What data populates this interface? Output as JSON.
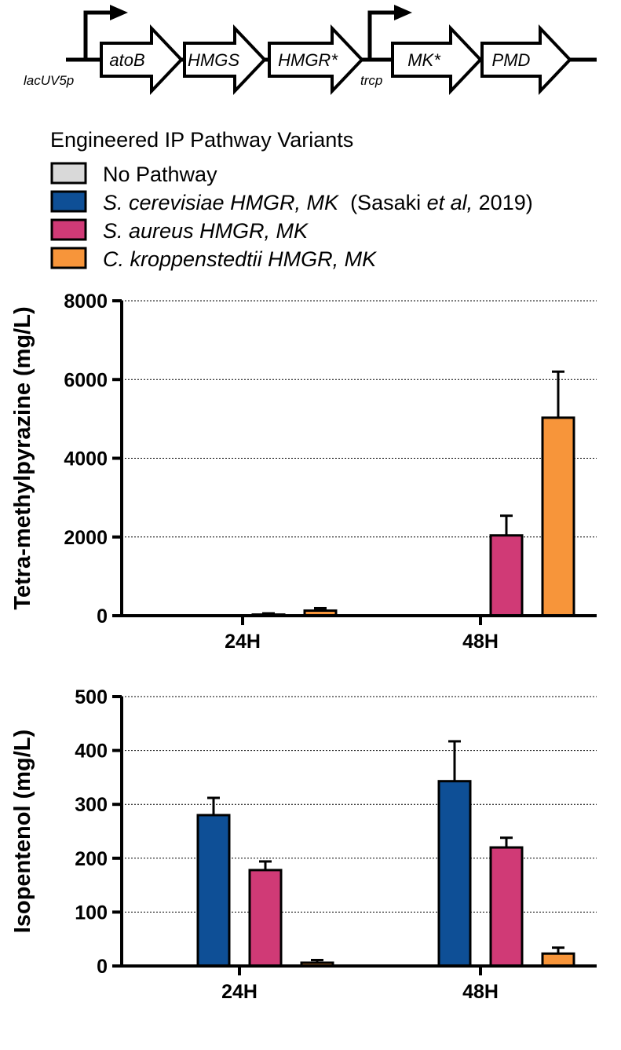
{
  "construct": {
    "promoters": [
      "lacUV5p",
      "trcp"
    ],
    "genes": [
      "atoB",
      "HMGS",
      "HMGR*",
      "MK*",
      "PMD"
    ]
  },
  "legend": {
    "title": "Engineered IP Pathway Variants",
    "items": [
      {
        "id": "none",
        "color": "#d9d9d9",
        "parts": [
          {
            "text": "No Pathway",
            "italic": false
          }
        ]
      },
      {
        "id": "scer",
        "color": "#0e4f96",
        "parts": [
          {
            "text": "S. cerevisiae HMGR, MK",
            "italic": true
          },
          {
            "text": "  (Sasaki ",
            "italic": false
          },
          {
            "text": "et al,",
            "italic": true
          },
          {
            "text": " 2019)",
            "italic": false
          }
        ]
      },
      {
        "id": "saur",
        "color": "#d03a76",
        "parts": [
          {
            "text": "S. aureus HMGR, MK",
            "italic": true
          }
        ]
      },
      {
        "id": "ckro",
        "color": "#f7953a",
        "parts": [
          {
            "text": "C. kroppenstedtii HMGR, MK",
            "italic": true
          }
        ]
      }
    ]
  },
  "chart_data": [
    {
      "type": "bar",
      "ylabel": "Tetra-methylpyrazine (mg/L)",
      "xlabel": "",
      "ylim": [
        0,
        8000
      ],
      "yticks": [
        0,
        2000,
        4000,
        6000,
        8000
      ],
      "grid": true,
      "categories": [
        "24H",
        "48H"
      ],
      "series": [
        {
          "name": "No Pathway",
          "color": "#d9d9d9",
          "values": [
            0,
            0
          ],
          "errors": [
            0,
            0
          ]
        },
        {
          "name": "S. cerevisiae HMGR, MK (Sasaki et al, 2019)",
          "color": "#0e4f96",
          "values": [
            0,
            0
          ],
          "errors": [
            0,
            0
          ]
        },
        {
          "name": "S. aureus HMGR, MK",
          "color": "#d03a76",
          "values": [
            30,
            2040
          ],
          "errors": [
            30,
            500
          ]
        },
        {
          "name": "C. kroppenstedtii HMGR, MK",
          "color": "#f7953a",
          "values": [
            130,
            5030
          ],
          "errors": [
            60,
            1170
          ]
        }
      ]
    },
    {
      "type": "bar",
      "ylabel": "Isopentenol (mg/L)",
      "xlabel": "",
      "ylim": [
        0,
        500
      ],
      "yticks": [
        0,
        100,
        200,
        300,
        400,
        500
      ],
      "grid": true,
      "categories": [
        "24H",
        "48H"
      ],
      "series": [
        {
          "name": "No Pathway",
          "color": "#d9d9d9",
          "values": [
            0,
            0
          ],
          "errors": [
            0,
            0
          ]
        },
        {
          "name": "S. cerevisiae HMGR, MK (Sasaki et al, 2019)",
          "color": "#0e4f96",
          "values": [
            280,
            343
          ],
          "errors": [
            32,
            74
          ]
        },
        {
          "name": "S. aureus HMGR, MK",
          "color": "#d03a76",
          "values": [
            178,
            220
          ],
          "errors": [
            16,
            18
          ]
        },
        {
          "name": "C. kroppenstedtii HMGR, MK",
          "color": "#f7953a",
          "values": [
            6,
            23
          ],
          "errors": [
            5,
            11
          ]
        }
      ]
    }
  ]
}
